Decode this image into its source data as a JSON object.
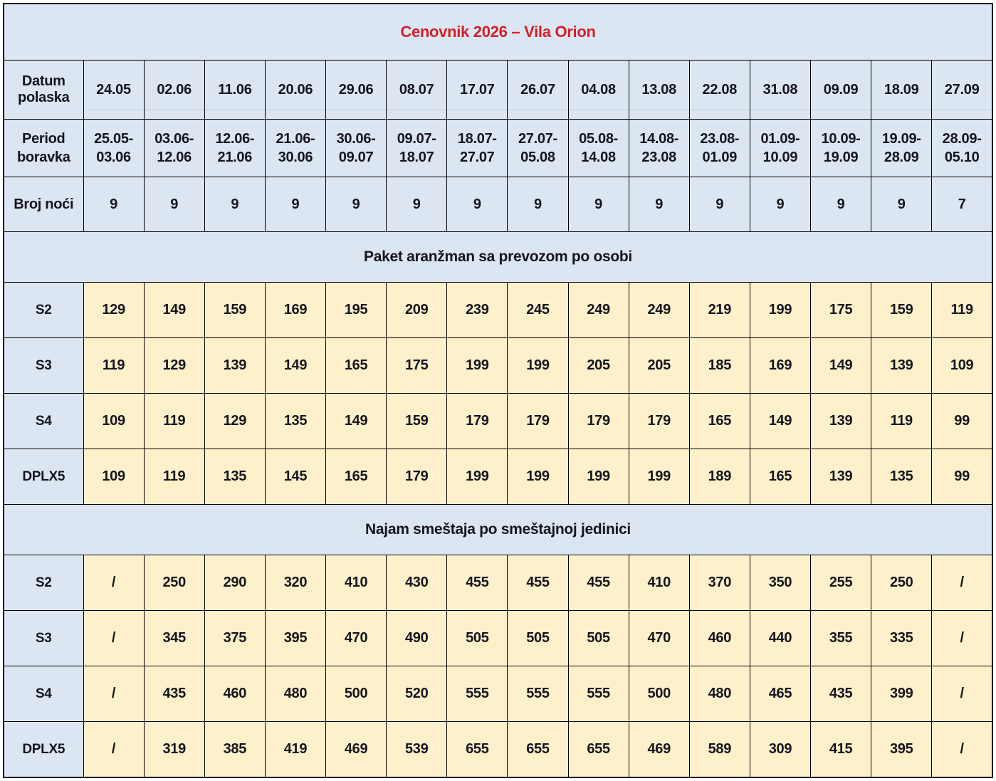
{
  "title": "Cenovnik 2026 – Vila Orion",
  "colors": {
    "header_bg": "#dce6f2",
    "price_bg": "#fdf0ca",
    "title_red": "#d22027",
    "border": "#000000",
    "text": "#15151d"
  },
  "header": {
    "datum_label": "Datum polaska",
    "period_label": "Period boravka",
    "nights_label": "Broj noći",
    "departures": [
      "24.05",
      "02.06",
      "11.06",
      "20.06",
      "29.06",
      "08.07",
      "17.07",
      "26.07",
      "04.08",
      "13.08",
      "22.08",
      "31.08",
      "09.09",
      "18.09",
      "27.09"
    ],
    "periods": [
      "25.05-03.06",
      "03.06-12.06",
      "12.06-21.06",
      "21.06-30.06",
      "30.06-09.07",
      "09.07-18.07",
      "18.07-27.07",
      "27.07-05.08",
      "05.08-14.08",
      "14.08-23.08",
      "23.08-01.09",
      "01.09-10.09",
      "10.09-19.09",
      "19.09-28.09",
      "28.09-05.10"
    ],
    "nights": [
      "9",
      "9",
      "9",
      "9",
      "9",
      "9",
      "9",
      "9",
      "9",
      "9",
      "9",
      "9",
      "9",
      "9",
      "7"
    ]
  },
  "sections": [
    {
      "heading": "Paket aranžman sa prevozom po osobi",
      "rows": [
        {
          "label": "S2",
          "values": [
            "129",
            "149",
            "159",
            "169",
            "195",
            "209",
            "239",
            "245",
            "249",
            "249",
            "219",
            "199",
            "175",
            "159",
            "119"
          ]
        },
        {
          "label": "S3",
          "values": [
            "119",
            "129",
            "139",
            "149",
            "165",
            "175",
            "199",
            "199",
            "205",
            "205",
            "185",
            "169",
            "149",
            "139",
            "109"
          ]
        },
        {
          "label": "S4",
          "values": [
            "109",
            "119",
            "129",
            "135",
            "149",
            "159",
            "179",
            "179",
            "179",
            "179",
            "165",
            "149",
            "139",
            "119",
            "99"
          ]
        },
        {
          "label": "DPLX5",
          "values": [
            "109",
            "119",
            "135",
            "145",
            "165",
            "179",
            "199",
            "199",
            "199",
            "199",
            "189",
            "165",
            "139",
            "135",
            "99"
          ]
        }
      ]
    },
    {
      "heading": "Najam smeštaja po smeštajnoj jedinici",
      "rows": [
        {
          "label": "S2",
          "values": [
            "/",
            "250",
            "290",
            "320",
            "410",
            "430",
            "455",
            "455",
            "455",
            "410",
            "370",
            "350",
            "255",
            "250",
            "/"
          ]
        },
        {
          "label": "S3",
          "values": [
            "/",
            "345",
            "375",
            "395",
            "470",
            "490",
            "505",
            "505",
            "505",
            "470",
            "460",
            "440",
            "355",
            "335",
            "/"
          ]
        },
        {
          "label": "S4",
          "values": [
            "/",
            "435",
            "460",
            "480",
            "500",
            "520",
            "555",
            "555",
            "555",
            "500",
            "480",
            "465",
            "435",
            "399",
            "/"
          ]
        },
        {
          "label": "DPLX5",
          "values": [
            "/",
            "319",
            "385",
            "419",
            "469",
            "539",
            "655",
            "655",
            "655",
            "469",
            "589",
            "309",
            "415",
            "395",
            "/"
          ]
        }
      ]
    }
  ]
}
